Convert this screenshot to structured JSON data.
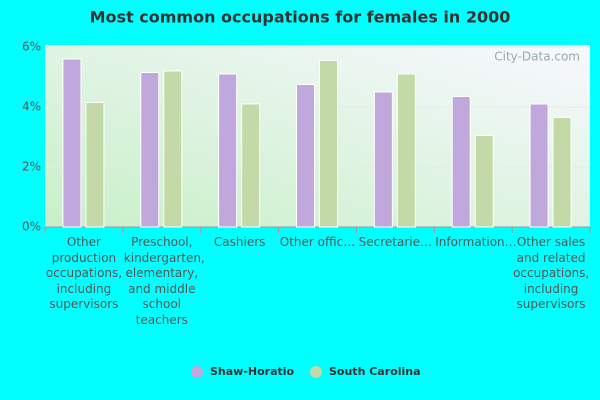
{
  "chart_data": {
    "type": "bar",
    "title": "Most common occupations for females in 2000",
    "watermark": "City-Data.com",
    "categories": [
      "Other production occupations, including supervisors",
      "Preschool, kindergarten, elementary, and middle school teachers",
      "Cashiers",
      "Other offic…",
      "Secretarie…",
      "Information…",
      "Other sales and related occupations, including supervisors"
    ],
    "series": [
      {
        "name": "Shaw-Horatio",
        "color": "#c0a8dc",
        "values": [
          5.6,
          5.15,
          5.1,
          4.75,
          4.5,
          4.35,
          4.1
        ]
      },
      {
        "name": "South Carolina",
        "color": "#c4d9a8",
        "values": [
          4.15,
          5.2,
          4.1,
          5.55,
          5.1,
          3.05,
          3.65
        ]
      }
    ],
    "ylim": [
      0,
      6
    ],
    "yticks": [
      {
        "value": 0,
        "label": "0%"
      },
      {
        "value": 2,
        "label": "2%"
      },
      {
        "value": 4,
        "label": "4%"
      },
      {
        "value": 6,
        "label": "6%"
      }
    ],
    "grid": true
  }
}
